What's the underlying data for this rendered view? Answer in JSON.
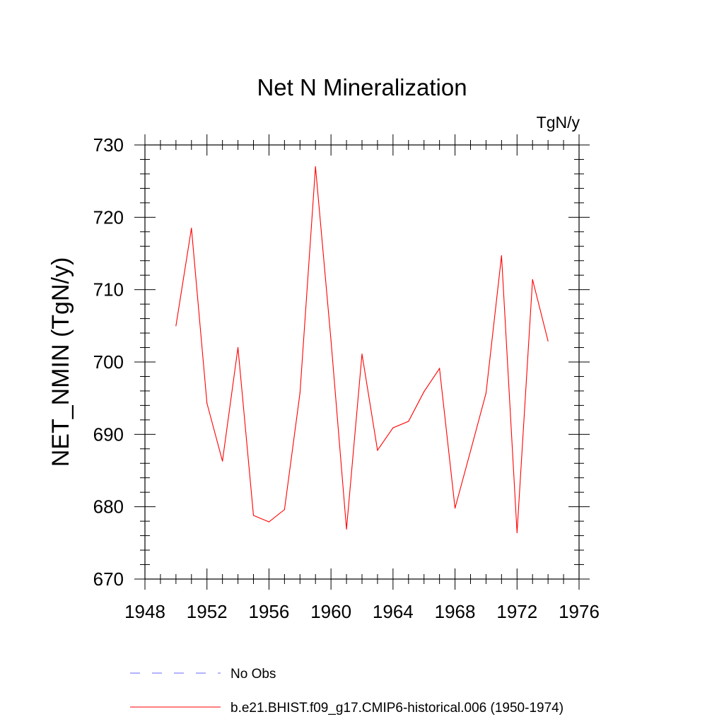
{
  "chart_data": {
    "type": "line",
    "title": "Net N Mineralization",
    "units": "TgN/y",
    "ylabel": "NET_NMIN  (TgN/y)",
    "xlabel": "",
    "xlim": [
      1948,
      1976
    ],
    "ylim": [
      670,
      730
    ],
    "xticks": [
      1948,
      1952,
      1956,
      1960,
      1964,
      1968,
      1972,
      1976
    ],
    "yticks": [
      670,
      680,
      690,
      700,
      710,
      720,
      730
    ],
    "grid": false,
    "legend_position": "bottom",
    "x": [
      1950,
      1951,
      1952,
      1953,
      1954,
      1955,
      1956,
      1957,
      1958,
      1959,
      1960,
      1961,
      1962,
      1963,
      1964,
      1965,
      1966,
      1967,
      1968,
      1969,
      1970,
      1971,
      1972,
      1973,
      1974
    ],
    "series": [
      {
        "name": "b.e21.BHIST.f09_g17.CMIP6-historical.006 (1950-1974)",
        "color": "#ff0000",
        "style": "solid",
        "values": [
          705.0,
          718.5,
          694.3,
          686.3,
          702.0,
          678.8,
          677.9,
          679.6,
          695.7,
          727.0,
          703.0,
          676.9,
          701.1,
          687.8,
          690.9,
          691.8,
          695.9,
          699.1,
          679.8,
          687.7,
          695.7,
          714.7,
          676.4,
          711.4,
          702.9
        ]
      }
    ],
    "legend": [
      {
        "name": "No Obs",
        "color": "#6a6aff",
        "style": "dashed"
      },
      {
        "name": "b.e21.BHIST.f09_g17.CMIP6-historical.006 (1950-1974)",
        "color": "#ff0000",
        "style": "solid"
      }
    ]
  }
}
